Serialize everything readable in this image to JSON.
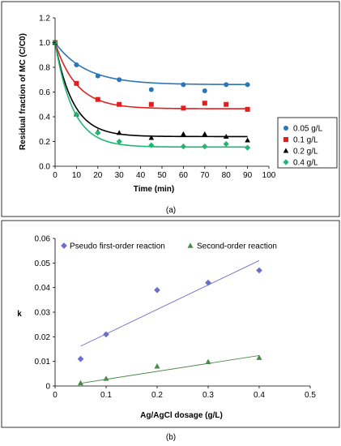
{
  "chart_data": [
    {
      "type": "scatter",
      "caption": "(a)",
      "xlabel": "Time (min)",
      "ylabel": "Residual fraction of MC (C/C0)",
      "xlim": [
        0,
        100
      ],
      "ylim": [
        0,
        1.2
      ],
      "xticks": [
        "0",
        "10",
        "20",
        "30",
        "40",
        "50",
        "60",
        "70",
        "80",
        "90",
        "100"
      ],
      "yticks": [
        "0.0",
        "0.2",
        "0.4",
        "0.6",
        "0.8",
        "1.0",
        "1.2"
      ],
      "legend_position": "right",
      "series": [
        {
          "name": "0.05 g/L",
          "color": "#2e75b6",
          "marker": "circle",
          "x": [
            0,
            10,
            20,
            30,
            45,
            60,
            70,
            80,
            90
          ],
          "y": [
            1.0,
            0.82,
            0.73,
            0.7,
            0.62,
            0.66,
            0.61,
            0.66,
            0.66
          ],
          "fit": {
            "c_inf": 0.66,
            "k": 0.07
          }
        },
        {
          "name": "0.1 g/L",
          "color": "#e02020",
          "marker": "square",
          "x": [
            0,
            10,
            20,
            30,
            45,
            60,
            70,
            80,
            90
          ],
          "y": [
            1.0,
            0.67,
            0.54,
            0.5,
            0.5,
            0.47,
            0.51,
            0.5,
            0.46
          ],
          "fit": {
            "c_inf": 0.465,
            "k": 0.1
          }
        },
        {
          "name": "0.2 g/L",
          "color": "#000000",
          "marker": "triangle",
          "x": [
            0,
            10,
            20,
            30,
            45,
            60,
            70,
            80,
            90
          ],
          "y": [
            1.0,
            0.42,
            0.28,
            0.27,
            0.23,
            0.26,
            0.26,
            0.24,
            0.21
          ],
          "fit": {
            "c_inf": 0.24,
            "k": 0.12
          }
        },
        {
          "name": "0.4 g/L",
          "color": "#22b573",
          "marker": "diamond",
          "x": [
            0,
            10,
            20,
            30,
            45,
            60,
            70,
            80,
            90
          ],
          "y": [
            1.0,
            0.42,
            0.27,
            0.2,
            0.17,
            0.16,
            0.16,
            0.18,
            0.15
          ],
          "fit": {
            "c_inf": 0.155,
            "k": 0.12
          }
        }
      ]
    },
    {
      "type": "scatter",
      "caption": "(b)",
      "xlabel": "Ag/AgCl dosage (g/L)",
      "ylabel": "k",
      "xlim": [
        0,
        0.5
      ],
      "ylim": [
        0,
        0.06
      ],
      "xticks": [
        "0",
        "0.1",
        "0.2",
        "0.3",
        "0.4",
        "0.5"
      ],
      "yticks": [
        "0",
        "0.01",
        "0.02",
        "0.03",
        "0.04",
        "0.05",
        "0.06"
      ],
      "legend_position": "top",
      "series": [
        {
          "name": "Pseudo first-order reaction",
          "color": "#6a6fc7",
          "marker": "diamond",
          "x": [
            0.05,
            0.1,
            0.2,
            0.3,
            0.4
          ],
          "y": [
            0.011,
            0.021,
            0.039,
            0.042,
            0.047
          ],
          "trendline": [
            [
              0.05,
              0.0162
            ],
            [
              0.4,
              0.051
            ]
          ]
        },
        {
          "name": "Second-order reaction",
          "color": "#4a8a4a",
          "marker": "triangle",
          "x": [
            0.05,
            0.1,
            0.2,
            0.3,
            0.4
          ],
          "y": [
            0.0012,
            0.003,
            0.008,
            0.0098,
            0.0115
          ],
          "trendline": [
            [
              0.05,
              0.0011
            ],
            [
              0.4,
              0.0124
            ]
          ]
        }
      ]
    }
  ]
}
